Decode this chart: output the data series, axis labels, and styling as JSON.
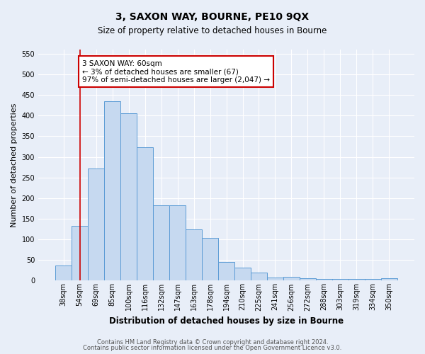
{
  "title": "3, SAXON WAY, BOURNE, PE10 9QX",
  "subtitle": "Size of property relative to detached houses in Bourne",
  "xlabel": "Distribution of detached houses by size in Bourne",
  "ylabel": "Number of detached properties",
  "bar_labels": [
    "38sqm",
    "54sqm",
    "69sqm",
    "85sqm",
    "100sqm",
    "116sqm",
    "132sqm",
    "147sqm",
    "163sqm",
    "178sqm",
    "194sqm",
    "210sqm",
    "225sqm",
    "241sqm",
    "256sqm",
    "272sqm",
    "288sqm",
    "303sqm",
    "319sqm",
    "334sqm",
    "350sqm"
  ],
  "bar_values": [
    36,
    133,
    272,
    435,
    405,
    323,
    183,
    183,
    125,
    103,
    45,
    31,
    20,
    8,
    9,
    6,
    4,
    4,
    4,
    4,
    6
  ],
  "bar_color": "#c6d9f0",
  "bar_edge_color": "#5b9bd5",
  "vline_x": 1,
  "vline_color": "#cc0000",
  "annotation_text": "3 SAXON WAY: 60sqm\n← 3% of detached houses are smaller (67)\n97% of semi-detached houses are larger (2,047) →",
  "annotation_box_color": "#ffffff",
  "annotation_box_edge_color": "#cc0000",
  "ylim": [
    0,
    560
  ],
  "yticks": [
    0,
    50,
    100,
    150,
    200,
    250,
    300,
    350,
    400,
    450,
    500,
    550
  ],
  "background_color": "#e8eef8",
  "plot_background_color": "#e8eef8",
  "footer_line1": "Contains HM Land Registry data © Crown copyright and database right 2024.",
  "footer_line2": "Contains public sector information licensed under the Open Government Licence v3.0.",
  "title_fontsize": 10,
  "subtitle_fontsize": 8.5,
  "ylabel_fontsize": 8,
  "xlabel_fontsize": 8.5,
  "tick_fontsize": 7,
  "annotation_fontsize": 7.5,
  "footer_fontsize": 6
}
